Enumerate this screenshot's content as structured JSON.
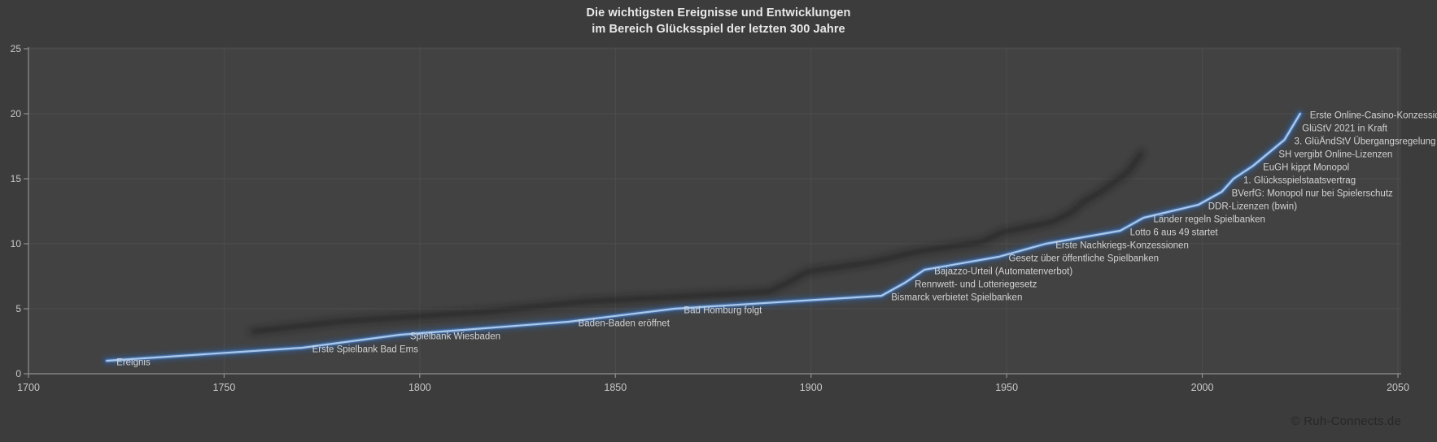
{
  "title": {
    "line1": "Die wichtigsten Ereignisse und Entwicklungen",
    "line2": "im Bereich Glücksspiel der letzten 300 Jahre"
  },
  "footer": {
    "credit": "© Ruh-Connects.de"
  },
  "colors": {
    "background": "#3c3c3c",
    "plot_background": "#424242",
    "gridline": "#4d4d4d",
    "axis": "#8f8f8f",
    "tick_label": "#c9c9c9",
    "title_text": "#e9e9e9",
    "data_label": "#d3d3d3",
    "line_core": "#abc8ea",
    "line_mid": "#4d7fc0",
    "line_glow": "#2f5f9e",
    "shadow": "#181818",
    "credit_text": "#272727"
  },
  "chart_data": {
    "type": "line",
    "title": "Die wichtigsten Ereignisse und Entwicklungen im Bereich Glücksspiel der letzten 300 Jahre",
    "xlabel": "",
    "ylabel": "",
    "x_axis": {
      "min": 1700,
      "max": 2050,
      "tick_step": 50,
      "ticks": [
        1700,
        1750,
        1800,
        1850,
        1900,
        1950,
        2000,
        2050
      ]
    },
    "y_axis": {
      "min": 0,
      "max": 25,
      "tick_step": 5,
      "ticks": [
        0,
        5,
        10,
        15,
        20,
        25
      ]
    },
    "grid": true,
    "legend": "none",
    "series_name": "Ereignis",
    "events": [
      {
        "label": "Ereignis",
        "year": 1720,
        "value": 1
      },
      {
        "label": "Erste Spielbank Bad Ems",
        "year": 1770,
        "value": 2
      },
      {
        "label": "Spielbank Wiesbaden",
        "year": 1795,
        "value": 3
      },
      {
        "label": "Baden-Baden eröffnet",
        "year": 1838,
        "value": 4
      },
      {
        "label": "Bad Homburg folgt",
        "year": 1865,
        "value": 5
      },
      {
        "label": "Bismarck verbietet Spielbanken",
        "year": 1918,
        "value": 6
      },
      {
        "label": "Rennwett- und Lotteriegesetz",
        "year": 1924,
        "value": 7
      },
      {
        "label": "Bajazzo-Urteil (Automatenverbot)",
        "year": 1929,
        "value": 8
      },
      {
        "label": "Gesetz über öffentliche Spielbanken",
        "year": 1948,
        "value": 9
      },
      {
        "label": "Erste Nachkriegs-Konzessionen",
        "year": 1960,
        "value": 10
      },
      {
        "label": "Lotto 6 aus 49 startet",
        "year": 1979,
        "value": 11
      },
      {
        "label": "Länder regeln Spielbanken",
        "year": 1985,
        "value": 12
      },
      {
        "label": "DDR-Lizenzen (bwin)",
        "year": 1999,
        "value": 13
      },
      {
        "label": "BVerfG: Monopol nur bei Spielerschutz",
        "year": 2005,
        "value": 14
      },
      {
        "label": "1. Glücksspielstaatsvertrag",
        "year": 2008,
        "value": 15
      },
      {
        "label": "EuGH kippt Monopol",
        "year": 2013,
        "value": 16
      },
      {
        "label": "SH vergibt Online-Lizenzen",
        "year": 2017,
        "value": 17
      },
      {
        "label": "3. GlüÄndStV Übergangsregelung",
        "year": 2021,
        "value": 18
      },
      {
        "label": "GlüStV 2021 in Kraft",
        "year": 2023,
        "value": 19
      },
      {
        "label": "Erste Online-Casino-Konzessionen",
        "year": 2025,
        "value": 20
      }
    ]
  }
}
